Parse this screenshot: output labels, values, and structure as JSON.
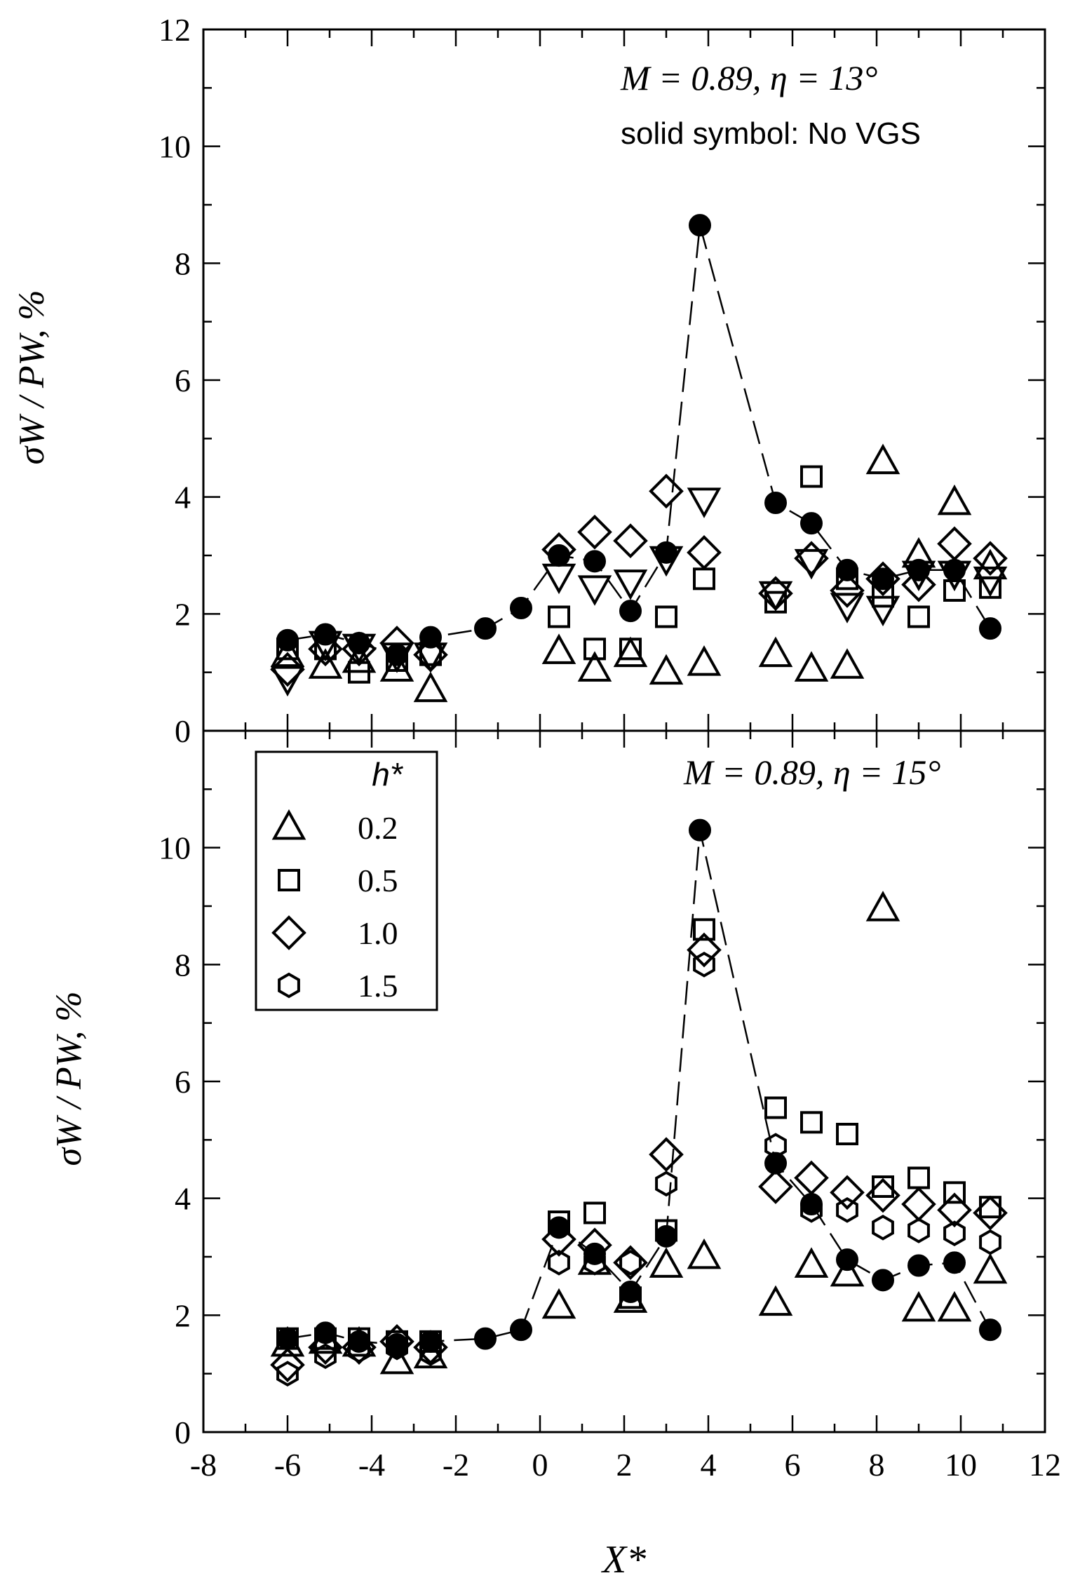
{
  "chart_data": [
    {
      "type": "scatter",
      "annotation": [
        "M = 0.89, η = 13°",
        "solid symbol: No VGS"
      ],
      "ylabel": "σW / PW, %",
      "xlim": [
        -8,
        12
      ],
      "ylim": [
        0,
        12
      ],
      "x_ticks": [
        -8,
        -6,
        -4,
        -2,
        0,
        2,
        4,
        6,
        8,
        10,
        12
      ],
      "y_ticks": [
        0,
        2,
        4,
        6,
        8,
        10,
        12
      ],
      "series": [
        {
          "marker": "triangle-up",
          "x": [
            -6.0,
            -5.1,
            -4.3,
            -3.4,
            -2.6,
            0.45,
            1.3,
            2.15,
            3.0,
            3.9,
            5.6,
            6.45,
            7.3,
            8.15,
            9.0,
            9.85,
            10.7
          ],
          "y": [
            1.3,
            1.1,
            1.2,
            1.05,
            0.7,
            1.35,
            1.05,
            1.3,
            1.0,
            1.15,
            1.3,
            1.05,
            1.1,
            4.6,
            3.0,
            3.9,
            2.8
          ]
        },
        {
          "marker": "square",
          "x": [
            -6.0,
            -5.1,
            -4.3,
            -3.4,
            -2.6,
            0.45,
            1.3,
            2.15,
            3.0,
            3.9,
            5.6,
            6.45,
            7.3,
            8.15,
            9.0,
            9.85,
            10.7
          ],
          "y": [
            1.4,
            1.4,
            1.0,
            1.2,
            1.3,
            1.95,
            1.4,
            1.4,
            1.95,
            2.6,
            2.2,
            4.35,
            2.6,
            2.3,
            1.95,
            2.4,
            2.45
          ]
        },
        {
          "marker": "diamond",
          "x": [
            -6.0,
            -5.1,
            -4.3,
            -3.4,
            -2.6,
            0.45,
            1.3,
            2.15,
            3.0,
            3.9,
            5.6,
            6.45,
            7.3,
            8.15,
            9.0,
            9.85,
            10.7
          ],
          "y": [
            1.05,
            1.4,
            1.4,
            1.5,
            1.3,
            3.1,
            3.4,
            3.25,
            4.1,
            3.05,
            2.35,
            2.95,
            2.4,
            2.6,
            2.5,
            3.2,
            2.95
          ]
        },
        {
          "marker": "triangle-down",
          "x": [
            -6.0,
            -5.1,
            -4.3,
            -3.4,
            -2.6,
            0.45,
            1.3,
            2.15,
            3.0,
            3.9,
            5.6,
            6.45,
            7.3,
            8.15,
            9.0,
            9.85,
            10.7
          ],
          "y": [
            0.9,
            1.5,
            1.45,
            1.3,
            1.3,
            2.65,
            2.45,
            2.55,
            2.95,
            3.95,
            2.35,
            2.9,
            2.15,
            2.1,
            2.7,
            2.7,
            2.6
          ]
        },
        {
          "marker": "circle-filled",
          "x": [
            -6.0,
            -5.1,
            -4.3,
            -3.4,
            -2.6,
            -1.3,
            -0.45,
            0.45,
            1.3,
            2.15,
            3.0,
            3.8,
            5.6,
            6.45,
            7.3,
            8.15,
            9.0,
            9.85,
            10.7
          ],
          "y": [
            1.55,
            1.65,
            1.5,
            1.3,
            1.6,
            1.75,
            2.1,
            3.0,
            2.9,
            2.05,
            3.05,
            8.65,
            3.9,
            3.55,
            2.75,
            2.6,
            2.75,
            2.75,
            1.75
          ]
        }
      ]
    },
    {
      "type": "scatter",
      "annotation": [
        "M = 0.89, η = 15°"
      ],
      "ylabel": "σW / PW, %",
      "xlabel": "X*",
      "xlim": [
        -8,
        12
      ],
      "ylim": [
        0,
        12
      ],
      "x_ticks": [
        -8,
        -6,
        -4,
        -2,
        0,
        2,
        4,
        6,
        8,
        10,
        12
      ],
      "y_ticks": [
        0,
        2,
        4,
        6,
        8,
        10
      ],
      "legend": {
        "title": "h*",
        "placement": "top-left",
        "entries": [
          {
            "marker": "triangle-up",
            "label": "0.2"
          },
          {
            "marker": "square",
            "label": "0.5"
          },
          {
            "marker": "diamond",
            "label": "1.0"
          },
          {
            "marker": "hexagon",
            "label": "1.5"
          }
        ]
      },
      "series": [
        {
          "name": "0.2",
          "marker": "triangle-up",
          "x": [
            -6.0,
            -5.1,
            -4.3,
            -3.4,
            -2.6,
            0.45,
            1.3,
            2.15,
            3.0,
            3.9,
            5.6,
            6.45,
            7.3,
            8.15,
            9.0,
            9.85,
            10.7
          ],
          "y": [
            1.5,
            1.55,
            1.5,
            1.2,
            1.3,
            2.15,
            2.9,
            2.25,
            2.85,
            3.0,
            2.2,
            2.85,
            2.7,
            8.95,
            2.1,
            2.1,
            2.75
          ]
        },
        {
          "name": "0.5",
          "marker": "square",
          "x": [
            -6.0,
            -5.1,
            -4.3,
            -3.4,
            -2.6,
            0.45,
            1.3,
            2.15,
            3.0,
            3.9,
            5.6,
            6.45,
            7.3,
            8.15,
            9.0,
            9.85,
            10.7
          ],
          "y": [
            1.6,
            1.6,
            1.6,
            1.55,
            1.55,
            3.6,
            3.75,
            2.3,
            3.45,
            8.6,
            5.55,
            5.3,
            5.1,
            4.2,
            4.35,
            4.1,
            3.85
          ]
        },
        {
          "name": "1.0",
          "marker": "diamond",
          "x": [
            -6.0,
            -5.1,
            -4.3,
            -3.4,
            -2.6,
            0.45,
            1.3,
            2.15,
            3.0,
            3.9,
            5.6,
            6.45,
            7.3,
            8.15,
            9.0,
            9.85,
            10.7
          ],
          "y": [
            1.15,
            1.45,
            1.45,
            1.55,
            1.45,
            3.3,
            3.2,
            2.9,
            4.75,
            8.25,
            4.2,
            4.35,
            4.1,
            4.05,
            3.9,
            3.8,
            3.75
          ]
        },
        {
          "name": "1.5",
          "marker": "hexagon",
          "x": [
            -6.0,
            -5.1,
            -4.3,
            -3.4,
            -2.6,
            0.45,
            1.3,
            2.15,
            3.0,
            3.9,
            5.6,
            6.45,
            7.3,
            8.15,
            9.0,
            9.85,
            10.7
          ],
          "y": [
            1.0,
            1.3,
            1.4,
            1.45,
            1.35,
            2.9,
            2.9,
            2.9,
            4.25,
            8.0,
            4.9,
            3.8,
            3.8,
            3.5,
            3.45,
            3.4,
            3.25
          ]
        },
        {
          "marker": "circle-filled",
          "x": [
            -6.0,
            -5.1,
            -4.3,
            -3.4,
            -2.6,
            -1.3,
            -0.45,
            0.45,
            1.3,
            2.15,
            3.0,
            3.8,
            5.6,
            6.45,
            7.3,
            8.15,
            9.0,
            9.85,
            10.7
          ],
          "y": [
            1.6,
            1.7,
            1.55,
            1.5,
            1.55,
            1.6,
            1.75,
            3.5,
            3.05,
            2.4,
            3.35,
            10.3,
            4.6,
            3.9,
            2.95,
            2.6,
            2.85,
            2.9,
            1.75
          ]
        }
      ]
    }
  ]
}
